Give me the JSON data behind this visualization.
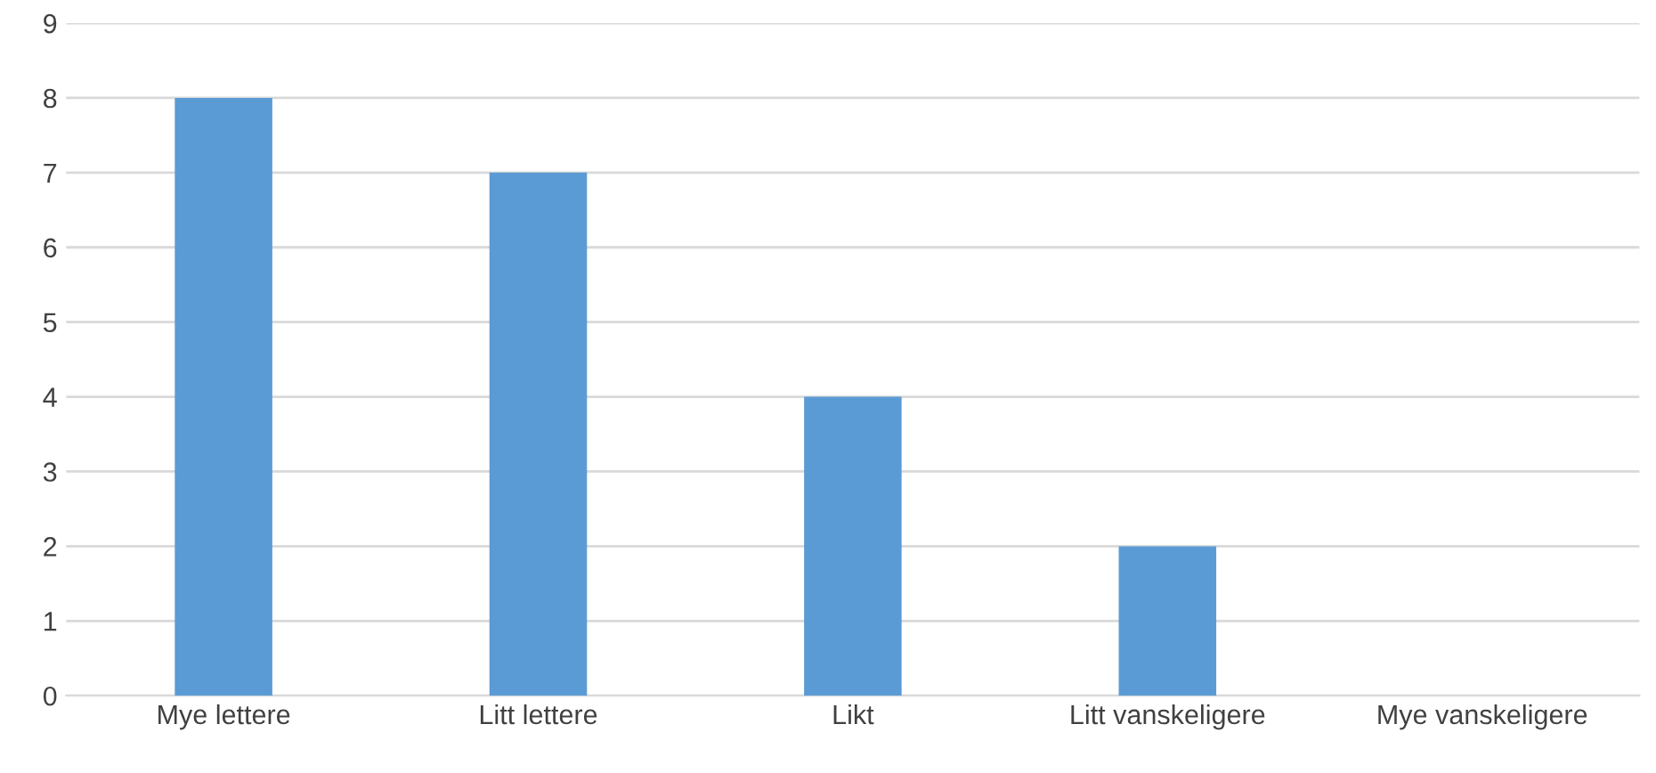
{
  "chart_data": {
    "type": "bar",
    "categories": [
      "Mye lettere",
      "Litt lettere",
      "Likt",
      "Litt vanskeligere",
      "Mye vanskeligere"
    ],
    "values": [
      8,
      7,
      4,
      2,
      0
    ],
    "color": "#5b9bd5",
    "ylim": [
      0,
      9
    ],
    "yticks": [
      0,
      1,
      2,
      3,
      4,
      5,
      6,
      7,
      8,
      9
    ],
    "grid": "y"
  }
}
